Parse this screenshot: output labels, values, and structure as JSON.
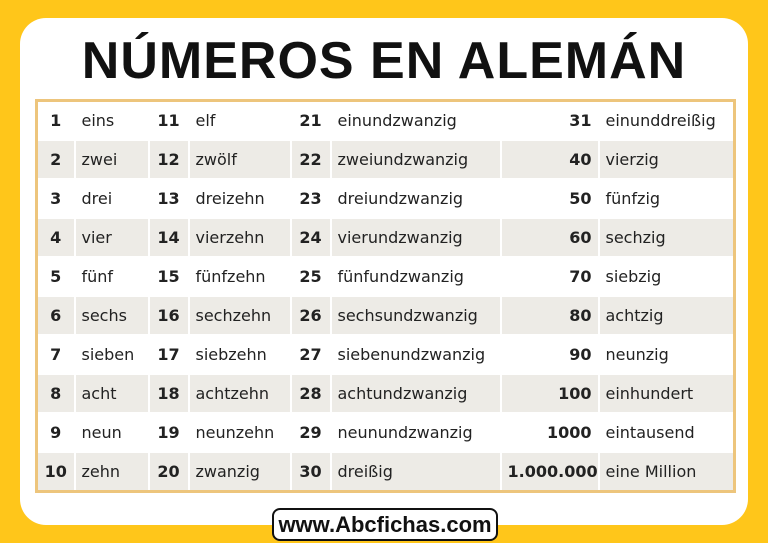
{
  "header": {
    "title": "NÚMEROS EN ALEMÁN"
  },
  "table": {
    "rows": [
      [
        "1",
        "eins",
        "11",
        "elf",
        "21",
        "einundzwanzig",
        "31",
        "einunddreißig"
      ],
      [
        "2",
        "zwei",
        "12",
        "zwölf",
        "22",
        "zweiundzwanzig",
        "40",
        "vierzig"
      ],
      [
        "3",
        "drei",
        "13",
        "dreizehn",
        "23",
        "dreiundzwanzig",
        "50",
        "fünfzig"
      ],
      [
        "4",
        "vier",
        "14",
        "vierzehn",
        "24",
        "vierundzwanzig",
        "60",
        "sechzig"
      ],
      [
        "5",
        "fünf",
        "15",
        "fünfzehn",
        "25",
        "fünfundzwanzig",
        "70",
        "siebzig"
      ],
      [
        "6",
        "sechs",
        "16",
        "sechzehn",
        "26",
        "sechsundzwanzig",
        "80",
        "achtzig"
      ],
      [
        "7",
        "sieben",
        "17",
        "siebzehn",
        "27",
        "siebenundzwanzig",
        "90",
        "neunzig"
      ],
      [
        "8",
        "acht",
        "18",
        "achtzehn",
        "28",
        "achtundzwanzig",
        "100",
        "einhundert"
      ],
      [
        "9",
        "neun",
        "19",
        "neunzehn",
        "29",
        "neunundzwanzig",
        "1000",
        "eintausend"
      ],
      [
        "10",
        "zehn",
        "20",
        "zwanzig",
        "30",
        "dreißig",
        "1.000.000",
        "eine Million"
      ]
    ]
  },
  "footer": {
    "url": "www.Abcfichas.com"
  }
}
